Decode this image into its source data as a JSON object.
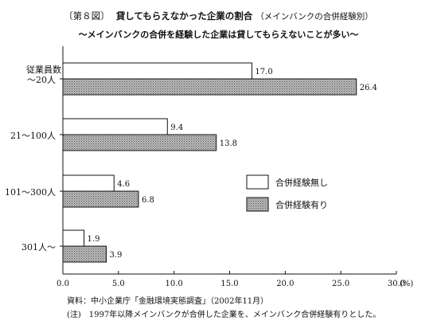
{
  "header": {
    "figure_no": "〔第８図〕",
    "title": "貸してもらえなかった企業の割合",
    "title_note": "（メインバンクの合併経験別）",
    "subtitle": "～メインバンクの合併を経験した企業は貸してもらえないことが多い～"
  },
  "notes": {
    "source": "資料：中小企業庁「金融環境実態調査」（2002年11月）",
    "note": "(注)　1997年以降メインバンクが合併した企業を、メインバンク合併経験有りとした。"
  },
  "chart_data": {
    "type": "bar",
    "orientation": "horizontal",
    "title": "貸してもらえなかった企業の割合",
    "y_axis_title": "従業員数",
    "categories": [
      "～20人",
      "21～100人",
      "101～300人",
      "301人～"
    ],
    "series": [
      {
        "name": "合併経験無し",
        "values": [
          17.0,
          9.4,
          4.6,
          1.9
        ],
        "value_labels": [
          "17.0",
          "9.4",
          "4.6",
          "1.9"
        ],
        "fill": "#ffffff"
      },
      {
        "name": "合併経験有り",
        "values": [
          26.4,
          13.8,
          6.8,
          3.9
        ],
        "value_labels": [
          "26.4",
          "13.8",
          "6.8",
          "3.9"
        ],
        "fill": "#bdbdbd"
      }
    ],
    "x_ticks": [
      "0.0",
      "5.0",
      "10.0",
      "15.0",
      "20.0",
      "25.0",
      "30.0"
    ],
    "x_unit": "(%)",
    "xlim": [
      0,
      30
    ],
    "legend_position": "right"
  }
}
